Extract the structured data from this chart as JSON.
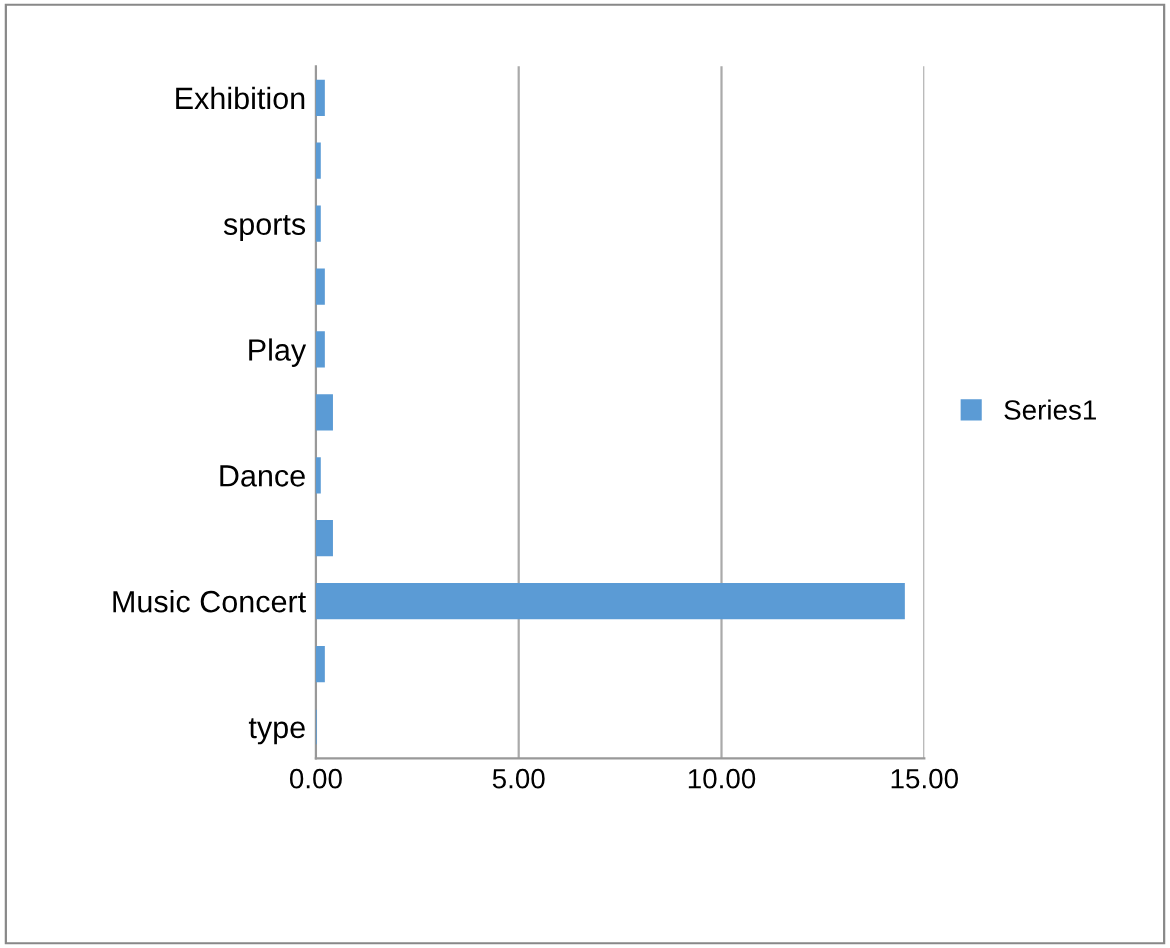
{
  "chart_data": {
    "type": "bar",
    "orientation": "horizontal",
    "categories": [
      "Exhibition",
      null,
      "sports",
      null,
      "Play",
      null,
      "Dance",
      null,
      "Music Concert",
      null,
      "type"
    ],
    "series": [
      {
        "name": "Series1",
        "color": "#5b9bd5",
        "values": [
          0.2,
          0.1,
          0.1,
          0.2,
          0.2,
          0.4,
          0.1,
          0.4,
          14.5,
          0.2,
          0
        ]
      }
    ],
    "xlim": [
      0,
      15
    ],
    "xticks": [
      {
        "value": 0,
        "label": "0.00"
      },
      {
        "value": 5,
        "label": "5.00"
      },
      {
        "value": 10,
        "label": "10.00"
      },
      {
        "value": 15,
        "label": "15.00"
      }
    ],
    "grid": "x",
    "legend": "right"
  }
}
